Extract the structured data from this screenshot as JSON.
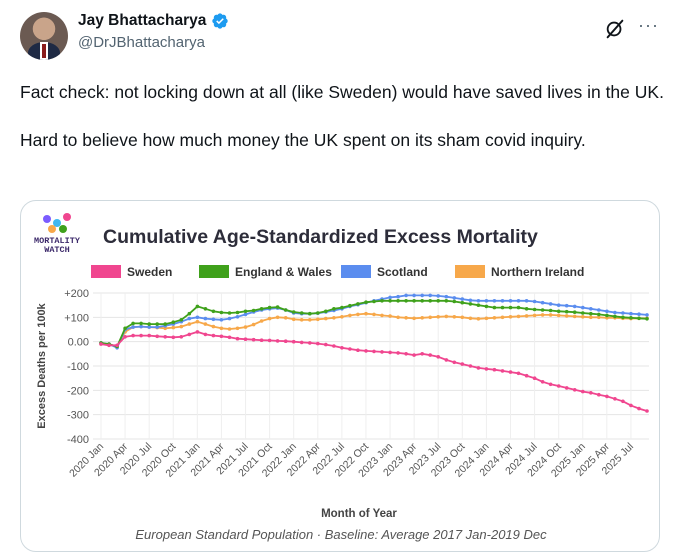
{
  "author": {
    "display_name": "Jay Bhattacharya",
    "handle": "@DrJBhattacharya"
  },
  "icons": {
    "verified": "verified-badge-icon",
    "grok": "grok-icon",
    "more": "more-icon"
  },
  "tweet": {
    "paragraph_1": "Fact check: not locking down at all (like Sweden) would have saved lives in the UK.",
    "paragraph_2": "Hard to believe how much money the UK spent on its sham covid inquiry."
  },
  "colors": {
    "sweden": "#f0468f",
    "england_wales": "#3fa11b",
    "scotland": "#5b8def",
    "northern_ireland": "#f7a84a",
    "verified": "#1d9bf0"
  },
  "logo": {
    "line1": "MORTALITY",
    "line2": "WATCH"
  },
  "chart_data": {
    "type": "line",
    "title": "Cumulative Age-Standardized Excess Mortality",
    "ylabel": "Excess Deaths per 100k",
    "xlabel": "Month of Year",
    "footnote": "European Standard Population · Baseline: Average 2017 Jan-2019 Dec",
    "ylim": [
      -400,
      200
    ],
    "y_ticks": [
      200,
      100,
      0,
      -100,
      -200,
      -300,
      -400
    ],
    "y_tick_labels": [
      "+200",
      "+100",
      "0.00",
      "-100",
      "-200",
      "-300",
      "-400"
    ],
    "x_start": "2020-01",
    "n_months": 69,
    "x_tick_labels": [
      "2020 Jan",
      "2020 Apr",
      "2020 Jul",
      "2020 Oct",
      "2021 Jan",
      "2021 Apr",
      "2021 Jul",
      "2021 Oct",
      "2022 Jan",
      "2022 Apr",
      "2022 Jul",
      "2022 Oct",
      "2023 Jan",
      "2023 Apr",
      "2023 Jul",
      "2023 Oct",
      "2024 Jan",
      "2024 Apr",
      "2024 Jul",
      "2024 Oct",
      "2025 Jan",
      "2025 Apr",
      "2025 Jul"
    ],
    "legend_position": "top",
    "grid": true,
    "series": [
      {
        "name": "Sweden",
        "color_key": "sweden",
        "values": [
          -10,
          -15,
          -15,
          20,
          25,
          25,
          25,
          22,
          20,
          18,
          20,
          30,
          40,
          30,
          25,
          22,
          18,
          12,
          10,
          8,
          6,
          5,
          3,
          2,
          0,
          -3,
          -5,
          -8,
          -12,
          -18,
          -25,
          -30,
          -35,
          -38,
          -40,
          -42,
          -44,
          -46,
          -50,
          -55,
          -50,
          -55,
          -62,
          -75,
          -85,
          -92,
          -100,
          -108,
          -112,
          -115,
          -120,
          -125,
          -130,
          -140,
          -150,
          -165,
          -175,
          -182,
          -190,
          -198,
          -205,
          -210,
          -218,
          -225,
          -235,
          -245,
          -262,
          -275,
          -285
        ]
      },
      {
        "name": "England & Wales",
        "color_key": "england_wales",
        "values": [
          -5,
          -10,
          -20,
          55,
          75,
          75,
          72,
          72,
          72,
          80,
          90,
          115,
          145,
          135,
          125,
          120,
          118,
          120,
          125,
          128,
          135,
          140,
          142,
          130,
          122,
          118,
          115,
          118,
          125,
          135,
          140,
          148,
          155,
          162,
          165,
          168,
          168,
          168,
          168,
          168,
          168,
          168,
          168,
          168,
          165,
          160,
          155,
          150,
          145,
          140,
          140,
          140,
          140,
          135,
          132,
          130,
          128,
          125,
          123,
          121,
          118,
          115,
          112,
          108,
          104,
          100,
          98,
          96,
          94
        ]
      },
      {
        "name": "Scotland",
        "color_key": "scotland",
        "values": [
          -5,
          -10,
          -25,
          50,
          60,
          62,
          60,
          60,
          65,
          72,
          82,
          95,
          100,
          95,
          92,
          90,
          95,
          102,
          112,
          122,
          130,
          135,
          138,
          130,
          118,
          115,
          115,
          117,
          122,
          128,
          135,
          145,
          152,
          160,
          168,
          175,
          182,
          185,
          190,
          190,
          190,
          190,
          188,
          185,
          180,
          175,
          170,
          168,
          168,
          168,
          168,
          168,
          168,
          168,
          165,
          160,
          155,
          150,
          148,
          145,
          140,
          135,
          130,
          125,
          120,
          118,
          115,
          113,
          110
        ]
      },
      {
        "name": "Northern Ireland",
        "color_key": "northern_ireland",
        "values": [
          -8,
          -12,
          -18,
          40,
          60,
          62,
          60,
          58,
          55,
          58,
          62,
          72,
          82,
          72,
          62,
          55,
          52,
          55,
          60,
          70,
          85,
          95,
          100,
          98,
          92,
          90,
          90,
          92,
          95,
          98,
          102,
          108,
          112,
          115,
          112,
          108,
          105,
          100,
          98,
          96,
          98,
          100,
          102,
          104,
          102,
          100,
          96,
          94,
          96,
          98,
          100,
          102,
          104,
          106,
          108,
          110,
          110,
          108,
          106,
          104,
          102,
          100,
          100,
          98,
          98,
          96,
          95,
          96,
          96
        ]
      }
    ]
  }
}
